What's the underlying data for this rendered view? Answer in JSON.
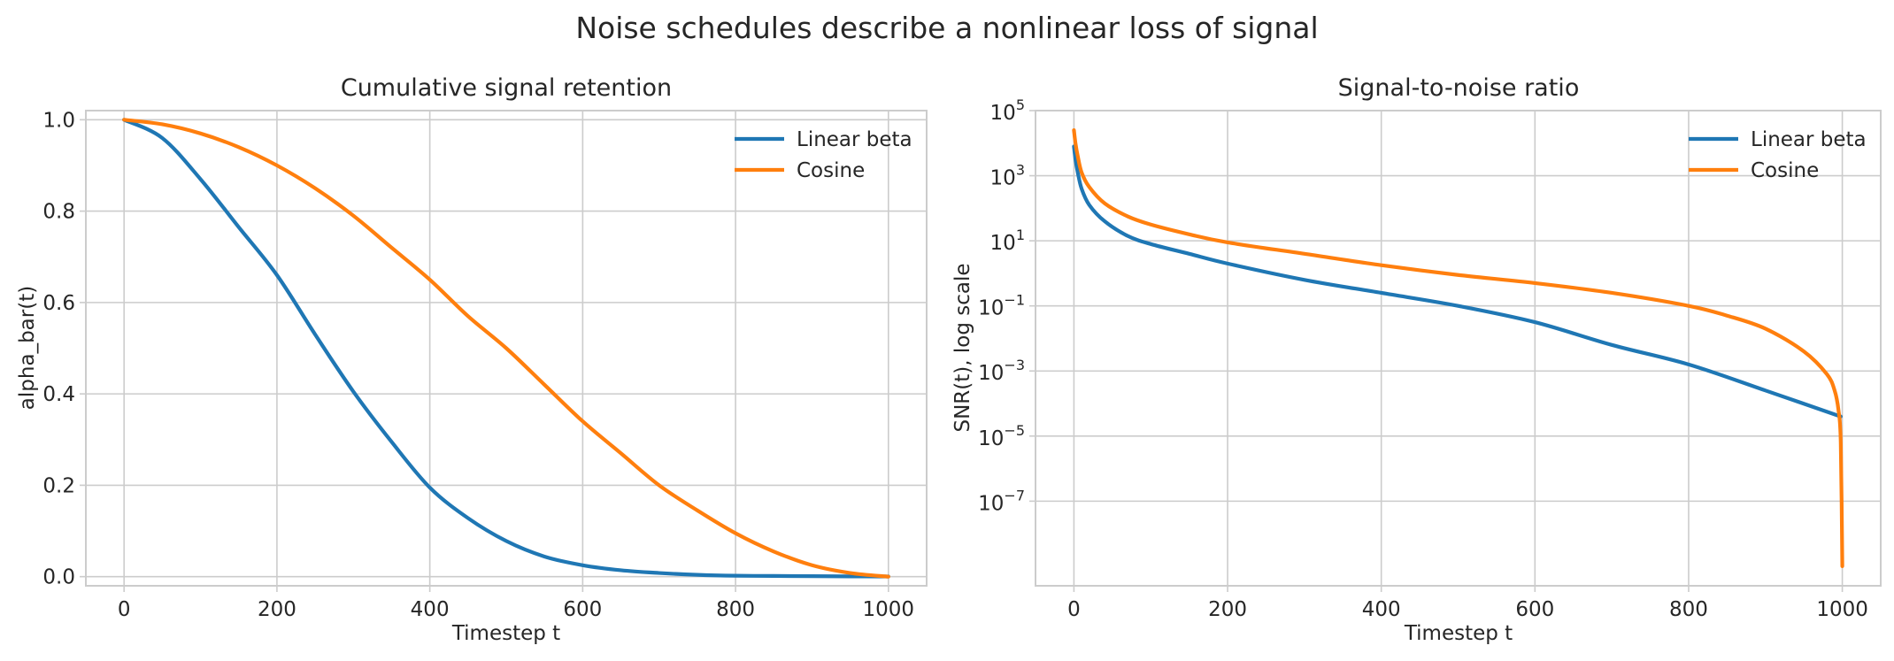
{
  "figure": {
    "suptitle": "Noise schedules describe a nonlinear loss of signal"
  },
  "colors": {
    "linear": "#1f77b4",
    "cosine": "#ff7f0e"
  },
  "chart_data": [
    {
      "type": "line",
      "title": "Cumulative signal retention",
      "xlabel": "Timestep t",
      "ylabel": "alpha_bar(t)",
      "xlim": [
        -50,
        1050
      ],
      "ylim": [
        -0.02,
        1.02
      ],
      "xticks": [
        0,
        200,
        400,
        600,
        800,
        1000
      ],
      "xtick_labels": [
        "0",
        "200",
        "400",
        "600",
        "800",
        "1000"
      ],
      "yticks": [
        0.0,
        0.2,
        0.4,
        0.6,
        0.8,
        1.0
      ],
      "ytick_labels": [
        "0.0",
        "0.2",
        "0.4",
        "0.6",
        "0.8",
        "1.0"
      ],
      "grid": true,
      "legend_position": "top-right",
      "x": [
        0,
        50,
        100,
        150,
        200,
        250,
        300,
        350,
        400,
        450,
        500,
        550,
        600,
        650,
        700,
        750,
        800,
        850,
        900,
        950,
        1000
      ],
      "series": [
        {
          "name": "Linear beta",
          "color_key": "linear",
          "values": [
            1.0,
            0.96,
            0.87,
            0.765,
            0.66,
            0.53,
            0.405,
            0.295,
            0.195,
            0.128,
            0.078,
            0.044,
            0.025,
            0.014,
            0.008,
            0.004,
            0.002,
            0.0015,
            0.001,
            0.0006,
            0.0004
          ]
        },
        {
          "name": "Cosine",
          "color_key": "cosine",
          "values": [
            1.0,
            0.99,
            0.97,
            0.94,
            0.9,
            0.85,
            0.79,
            0.72,
            0.65,
            0.57,
            0.5,
            0.42,
            0.34,
            0.27,
            0.2,
            0.145,
            0.095,
            0.055,
            0.025,
            0.008,
            0.0
          ]
        }
      ]
    },
    {
      "type": "line",
      "title": "Signal-to-noise ratio",
      "xlabel": "Timestep t",
      "ylabel": "SNR(t), log scale",
      "yscale": "log",
      "xlim": [
        -50,
        1050
      ],
      "ylim_log10": [
        -9.6,
        5.0
      ],
      "xticks": [
        0,
        200,
        400,
        600,
        800,
        1000
      ],
      "xtick_labels": [
        "0",
        "200",
        "400",
        "600",
        "800",
        "1000"
      ],
      "ytick_exponents": [
        -7,
        -5,
        -3,
        -1,
        1,
        3,
        5
      ],
      "ytick_base": "10",
      "ytick_exp_labels": [
        "−7",
        "−5",
        "−3",
        "−1",
        "1",
        "3",
        "5"
      ],
      "grid": true,
      "legend_position": "top-right",
      "series": [
        {
          "name": "Linear beta",
          "color_key": "linear",
          "x": [
            0,
            2,
            5,
            10,
            20,
            40,
            70,
            100,
            150,
            200,
            300,
            400,
            500,
            600,
            700,
            800,
            900,
            998
          ],
          "log10_values": [
            3.9,
            3.5,
            3.1,
            2.6,
            2.1,
            1.6,
            1.15,
            0.9,
            0.6,
            0.3,
            -0.2,
            -0.6,
            -1.0,
            -1.5,
            -2.2,
            -2.8,
            -3.6,
            -4.4
          ]
        },
        {
          "name": "Cosine",
          "color_key": "cosine",
          "x": [
            0,
            2,
            5,
            10,
            20,
            40,
            70,
            100,
            150,
            200,
            300,
            400,
            500,
            600,
            700,
            800,
            850,
            900,
            950,
            980,
            990,
            995,
            998,
            1000
          ],
          "log10_values": [
            4.4,
            4.0,
            3.6,
            3.1,
            2.65,
            2.15,
            1.75,
            1.5,
            1.2,
            0.95,
            0.6,
            0.25,
            -0.05,
            -0.3,
            -0.6,
            -1.0,
            -1.3,
            -1.7,
            -2.4,
            -3.1,
            -3.6,
            -4.2,
            -5.2,
            -9.0
          ]
        }
      ]
    }
  ]
}
